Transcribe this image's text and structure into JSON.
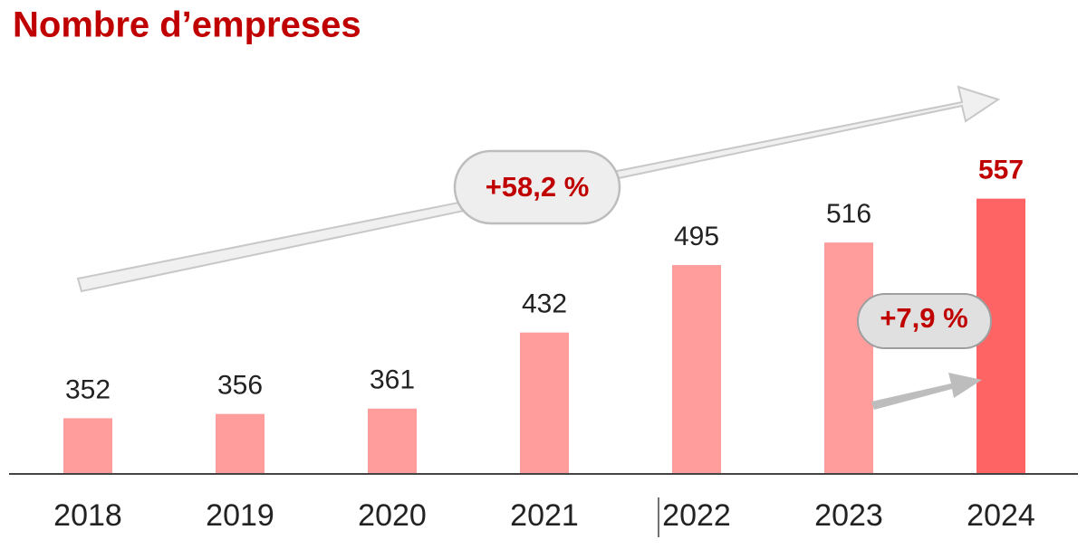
{
  "chart_data": {
    "type": "bar",
    "title": "Nombre d’empreses",
    "categories": [
      "2018",
      "2019",
      "2020",
      "2021",
      "2022",
      "2023",
      "2024"
    ],
    "values": [
      352,
      356,
      361,
      432,
      495,
      516,
      557
    ],
    "colors": [
      "#ff9c9c",
      "#ff9c9c",
      "#ff9c9c",
      "#ff9c9c",
      "#ff9c9c",
      "#ff9c9c",
      "#ff6464"
    ],
    "value_label_colors": [
      "#222222",
      "#222222",
      "#222222",
      "#222222",
      "#222222",
      "#222222",
      "#c00000"
    ],
    "ylim": [
      300,
      658
    ],
    "annotations": [
      {
        "text": "+58,2 %"
      },
      {
        "text": "+7,9 %"
      }
    ]
  }
}
